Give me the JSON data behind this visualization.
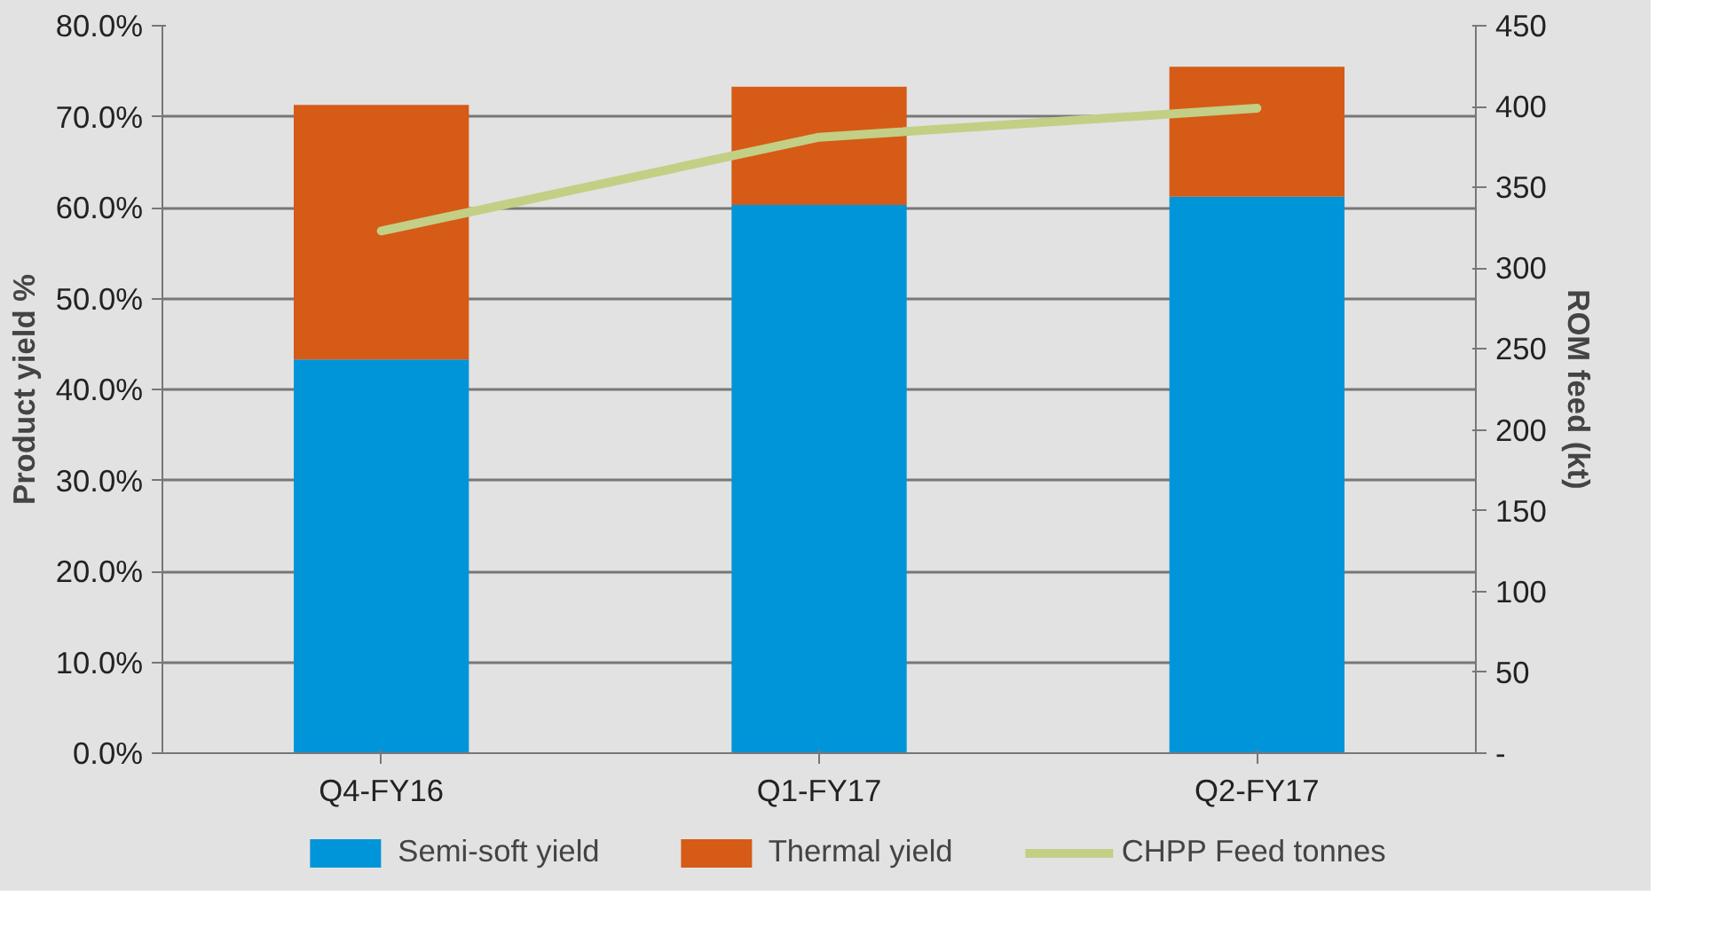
{
  "chart_data": {
    "type": "bar",
    "stacked": true,
    "categories": [
      "Q4-FY16",
      "Q1-FY17",
      "Q2-FY17"
    ],
    "ylabel": "Product yield %",
    "y2label": "ROM feed (kt)",
    "ylim": [
      0,
      80
    ],
    "yticks": [
      {
        "value": 0,
        "label": "0.0%"
      },
      {
        "value": 10,
        "label": "10.0%"
      },
      {
        "value": 20,
        "label": "20.0%"
      },
      {
        "value": 30,
        "label": "30.0%"
      },
      {
        "value": 40,
        "label": "40.0%"
      },
      {
        "value": 50,
        "label": "50.0%"
      },
      {
        "value": 60,
        "label": "60.0%"
      },
      {
        "value": 70,
        "label": "70.0%"
      },
      {
        "value": 80,
        "label": "80.0%"
      }
    ],
    "y2lim": [
      0,
      450
    ],
    "y2ticks": [
      {
        "value": 0,
        "label": "-"
      },
      50,
      100,
      150,
      200,
      250,
      300,
      350,
      400,
      450
    ],
    "grid": "y",
    "legend": "bottom",
    "series": [
      {
        "name": "Semi-soft yield",
        "color": "#0095d9",
        "values": [
          43.3,
          60.3,
          61.2
        ]
      },
      {
        "name": "Thermal yield",
        "color": "#d55b17",
        "values": [
          28.0,
          13.0,
          14.3
        ]
      },
      {
        "name": "CHPP Feed tonnes",
        "type": "line",
        "axis": "y2",
        "color": "#c3cf85",
        "values": [
          323,
          381,
          399
        ]
      }
    ]
  }
}
